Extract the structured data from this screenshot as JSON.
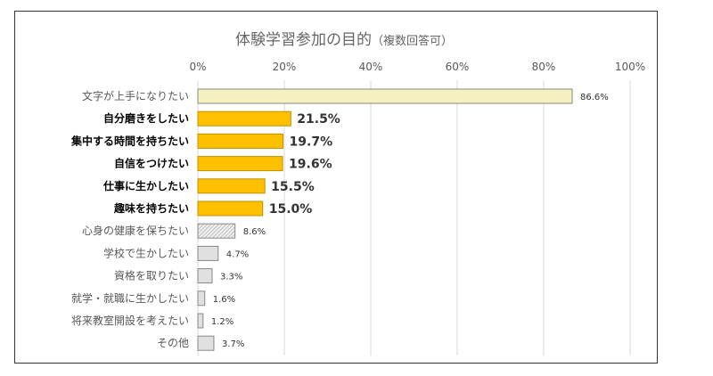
{
  "chart_data": {
    "type": "bar",
    "orientation": "horizontal",
    "title": "体験学習参加の目的",
    "subtitle": "（複数回答可）",
    "xlim": [
      0,
      100
    ],
    "x_ticks": [
      "0%",
      "20%",
      "40%",
      "60%",
      "80%",
      "100%"
    ],
    "x_tick_values": [
      0,
      20,
      40,
      60,
      80,
      100
    ],
    "grid": true,
    "legend": "none",
    "categories": [
      "文字が上手になりたい",
      "自分磨きをしたい",
      "集中する時間を持ちたい",
      "自信をつけたい",
      "仕事に生かしたい",
      "趣味を持ちたい",
      "心身の健康を保ちたい",
      "学校で生かしたい",
      "資格を取りたい",
      "就学・就職に生かしたい",
      "将来教室開設を考えたい",
      "その他"
    ],
    "values": [
      86.6,
      21.5,
      19.7,
      19.6,
      15.5,
      15.0,
      8.6,
      4.7,
      3.3,
      1.6,
      1.2,
      3.7
    ],
    "value_labels": [
      "86.6%",
      "21.5%",
      "19.7%",
      "19.6%",
      "15.5%",
      "15.0%",
      "8.6%",
      "4.7%",
      "3.3%",
      "1.6%",
      "1.2%",
      "3.7%"
    ],
    "highlighted": [
      false,
      true,
      true,
      true,
      true,
      true,
      false,
      false,
      false,
      false,
      false,
      false
    ],
    "bar_styles": [
      "cream",
      "gold",
      "gold",
      "gold",
      "gold",
      "gold",
      "hatched",
      "gray",
      "gray",
      "gray",
      "gray",
      "gray"
    ],
    "colors": {
      "cream": "#f5f0c0",
      "gold": "#ffc000",
      "gray": "#e0e0e0",
      "hatch_bg": "#eeeeee",
      "hatch_line": "#9a9a9a",
      "bar_border": "#888888",
      "gold_border": "#bf9000"
    }
  }
}
